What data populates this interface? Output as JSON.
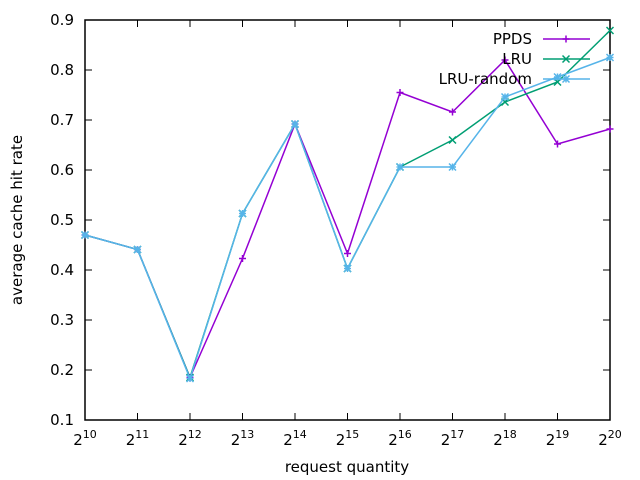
{
  "chart_data": {
    "type": "line",
    "xlabel": "request quantity",
    "ylabel": "average cache hit rate",
    "x_tick_base": "2",
    "x_exponents": [
      "10",
      "11",
      "12",
      "13",
      "14",
      "15",
      "16",
      "17",
      "18",
      "19",
      "20"
    ],
    "ylim": [
      0.1,
      0.9
    ],
    "y_ticks": [
      0.1,
      0.2,
      0.3,
      0.4,
      0.5,
      0.6,
      0.7,
      0.8,
      0.9
    ],
    "y_tick_labels": [
      "0.1",
      "0.2",
      "0.3",
      "0.4",
      "0.5",
      "0.6",
      "0.7",
      "0.8",
      "0.9"
    ],
    "x_scale": "log2",
    "grid": false,
    "legend_position": "top-right",
    "series": [
      {
        "name": "PPDS",
        "color": "#9400d3",
        "marker": "plus",
        "values": [
          0.47,
          0.441,
          0.185,
          0.423,
          0.692,
          0.433,
          0.755,
          0.716,
          0.82,
          0.652,
          0.682
        ]
      },
      {
        "name": "LRU",
        "color": "#009e73",
        "marker": "cross",
        "values": [
          0.47,
          0.441,
          0.185,
          0.513,
          0.692,
          0.403,
          0.606,
          0.66,
          0.736,
          0.776,
          0.879
        ]
      },
      {
        "name": "LRU-random",
        "color": "#56b4e9",
        "marker": "star",
        "values": [
          0.47,
          0.441,
          0.183,
          0.513,
          0.692,
          0.403,
          0.606,
          0.606,
          0.746,
          0.786,
          0.825
        ]
      }
    ]
  }
}
